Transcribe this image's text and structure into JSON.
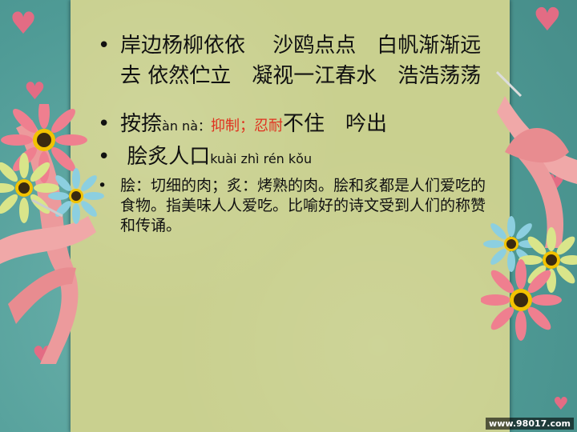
{
  "slide": {
    "bullets": [
      {
        "symbol": "•",
        "text": "岸边杨柳依依　 沙鸥点点　白帆渐渐远去 依然伫立　凝视一江春水　浩浩荡荡"
      },
      {
        "symbol": "•",
        "word": "按捺",
        "pinyin": "àn nà：",
        "meaning": "抑制；忍耐",
        "rest": "不住　吟出"
      },
      {
        "symbol": "•",
        "word": " 脍炙人口",
        "pinyin": "kuài zhì rén kǒu"
      },
      {
        "symbol": "•",
        "text": "脍：切细的肉；炙：烤熟的肉。脍和炙都是人们爱吃的食物。指美味人人爱吃。比喻好的诗文受到人们的称赞和传诵。"
      }
    ],
    "watermark": "www.98017.com"
  },
  "colors": {
    "accent_red": "#e0301e",
    "paper": "#c9d08f",
    "background": "#5fa8a3"
  }
}
